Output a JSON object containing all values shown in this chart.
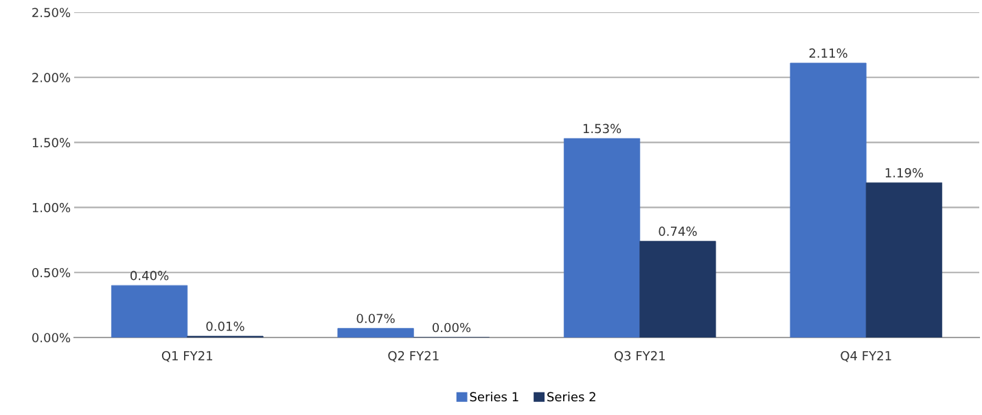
{
  "chart_data": {
    "type": "bar",
    "categories": [
      "Q1 FY21",
      "Q2 FY21",
      "Q3 FY21",
      "Q4 FY21"
    ],
    "series": [
      {
        "name": "Series 1",
        "color": "#4472c4",
        "values": [
          0.4,
          0.07,
          1.53,
          2.11
        ],
        "value_labels": [
          "0.40%",
          "0.07%",
          "1.53%",
          "2.11%"
        ]
      },
      {
        "name": "Series 2",
        "color": "#203864",
        "values": [
          0.01,
          0.0,
          0.74,
          1.19
        ],
        "value_labels": [
          "0.01%",
          "0.00%",
          "0.74%",
          "1.19%"
        ]
      }
    ],
    "ylim": [
      0,
      2.5
    ],
    "yticks": [
      {
        "value": 0,
        "label": "0.00%"
      },
      {
        "value": 0.5,
        "label": "0.50%"
      },
      {
        "value": 1.0,
        "label": "1.00%"
      },
      {
        "value": 1.5,
        "label": "1.50%"
      },
      {
        "value": 2.0,
        "label": "2.00%"
      },
      {
        "value": 2.5,
        "label": "2.50%"
      }
    ],
    "grid": "y",
    "legend": "bottom"
  }
}
